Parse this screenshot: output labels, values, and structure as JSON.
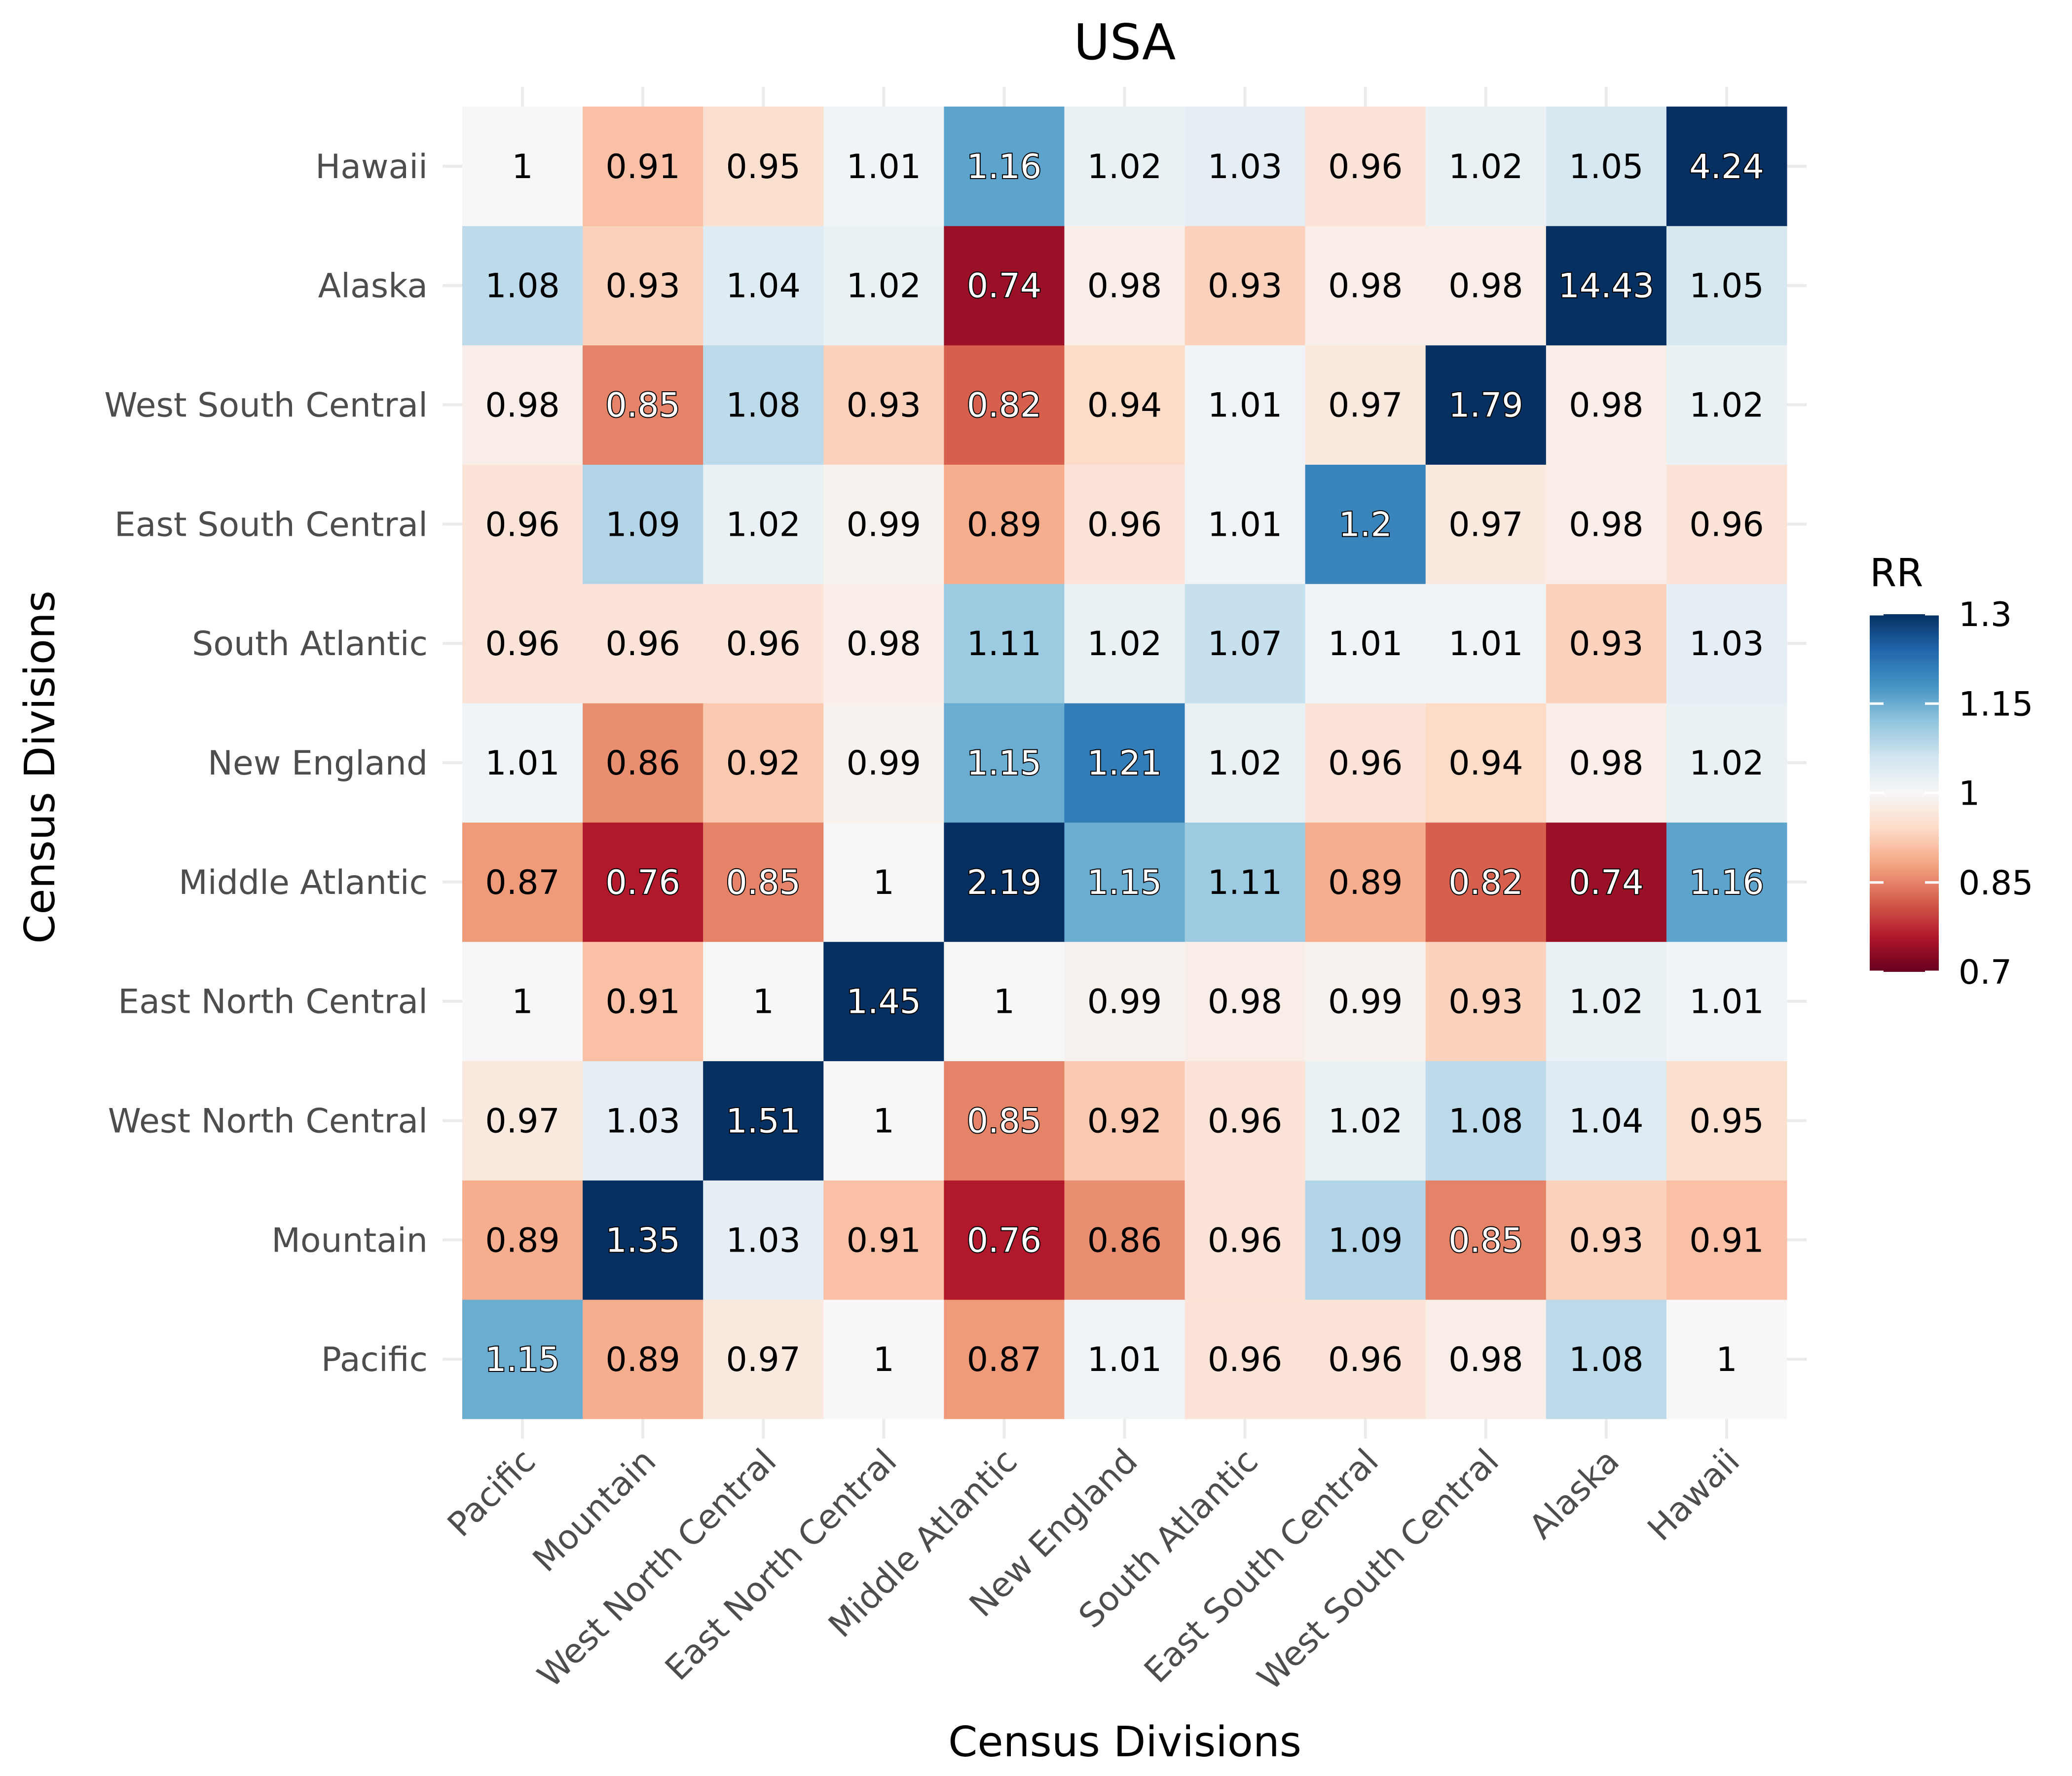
{
  "chart_data": {
    "type": "heatmap",
    "title": "USA",
    "xlabel": "Census Divisions",
    "ylabel": "Census Divisions",
    "x_categories": [
      "Pacific",
      "Mountain",
      "West North Central",
      "East North Central",
      "Middle Atlantic",
      "New England",
      "South Atlantic",
      "East South Central",
      "West South Central",
      "Alaska",
      "Hawaii"
    ],
    "y_categories": [
      "Pacific",
      "Mountain",
      "West North Central",
      "East North Central",
      "Middle Atlantic",
      "New England",
      "South Atlantic",
      "East South Central",
      "West South Central",
      "Alaska",
      "Hawaii"
    ],
    "values": [
      [
        1.15,
        0.89,
        0.97,
        1,
        0.87,
        1.01,
        0.96,
        0.96,
        0.98,
        1.08,
        1
      ],
      [
        0.89,
        1.35,
        1.03,
        0.91,
        0.76,
        0.86,
        0.96,
        1.09,
        0.85,
        0.93,
        0.91
      ],
      [
        0.97,
        1.03,
        1.51,
        1,
        0.85,
        0.92,
        0.96,
        1.02,
        1.08,
        1.04,
        0.95
      ],
      [
        1,
        0.91,
        1,
        1.45,
        1,
        0.99,
        0.98,
        0.99,
        0.93,
        1.02,
        1.01
      ],
      [
        0.87,
        0.76,
        0.85,
        1,
        2.19,
        1.15,
        1.11,
        0.89,
        0.82,
        0.74,
        1.16
      ],
      [
        1.01,
        0.86,
        0.92,
        0.99,
        1.15,
        1.21,
        1.02,
        0.96,
        0.94,
        0.98,
        1.02
      ],
      [
        0.96,
        0.96,
        0.96,
        0.98,
        1.11,
        1.02,
        1.07,
        1.01,
        1.01,
        0.93,
        1.03
      ],
      [
        0.96,
        1.09,
        1.02,
        0.99,
        0.89,
        0.96,
        1.01,
        1.2,
        0.97,
        0.98,
        0.96
      ],
      [
        0.98,
        0.85,
        1.08,
        0.93,
        0.82,
        0.94,
        1.01,
        0.97,
        1.79,
        0.98,
        1.02
      ],
      [
        1.08,
        0.93,
        1.04,
        1.02,
        0.74,
        0.98,
        0.93,
        0.98,
        0.98,
        14.43,
        1.05
      ],
      [
        1,
        0.91,
        0.95,
        1.01,
        1.16,
        1.02,
        1.03,
        0.96,
        1.02,
        1.05,
        4.24
      ]
    ],
    "color_scale": {
      "name": "RdBu",
      "limits": [
        0.7,
        1.3
      ],
      "low": "#67001f",
      "mid": "#f7f7f7",
      "high": "#053061"
    },
    "legend": {
      "title": "RR",
      "ticks": [
        0.7,
        0.85,
        1,
        1.15,
        1.3
      ],
      "placement": "right"
    }
  }
}
